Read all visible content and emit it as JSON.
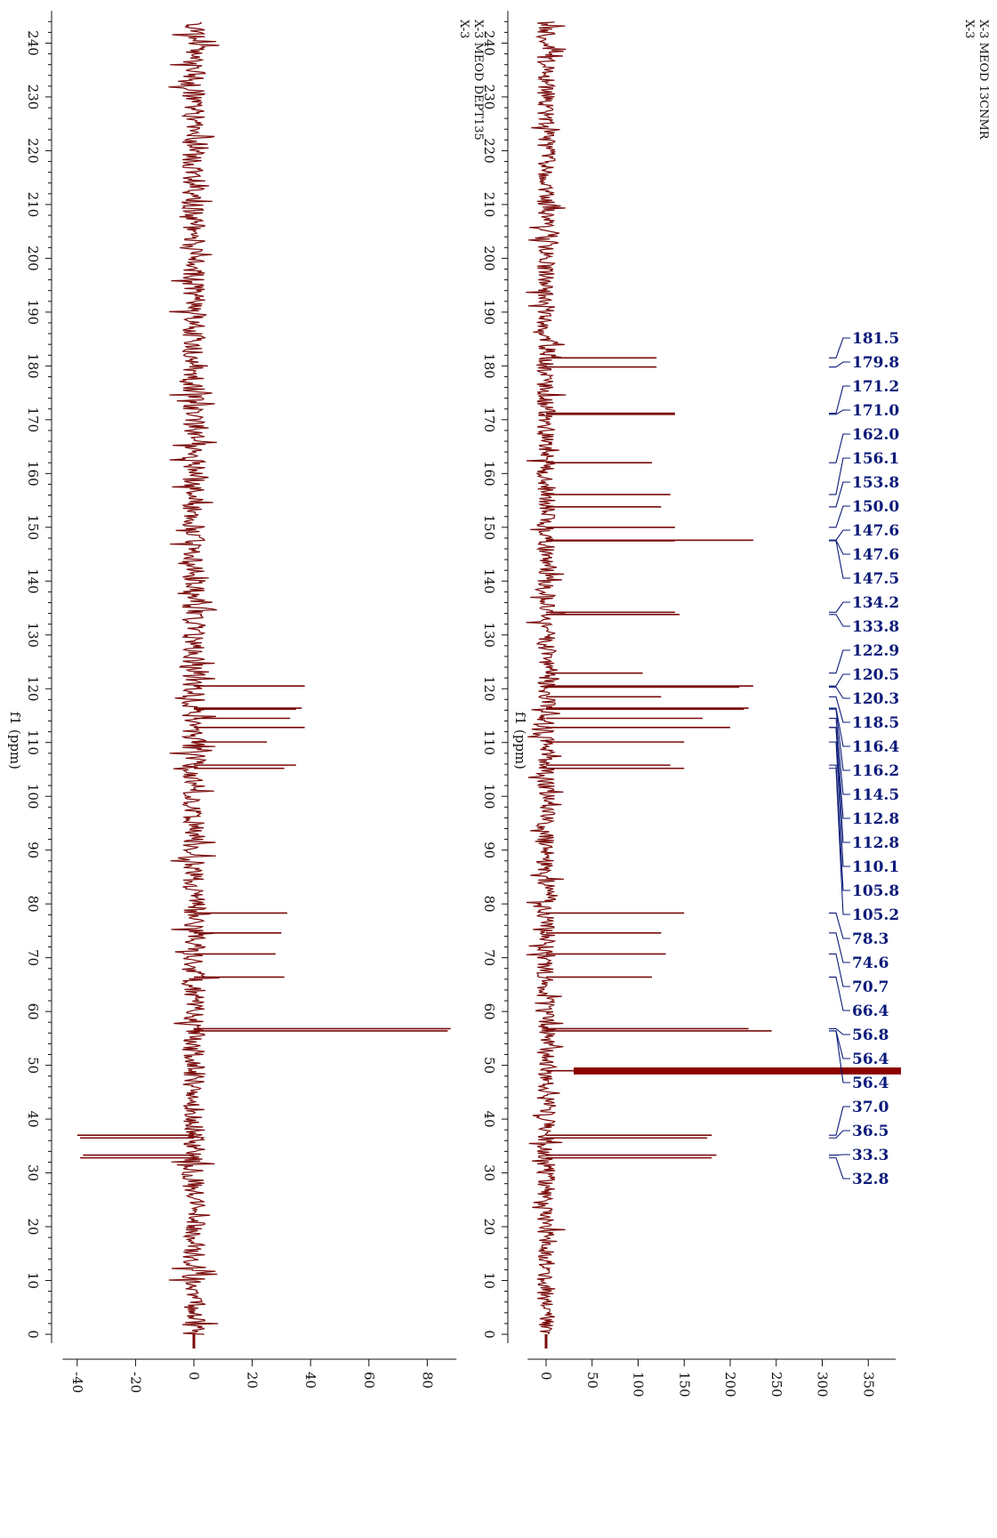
{
  "colors": {
    "spectrum": "#7a0a0a",
    "peak_label": "#0a1a78",
    "axis": "#111111",
    "baseline_fill": "#8b0000"
  },
  "chart_data": [
    {
      "type": "line",
      "orientation": "rotated-90",
      "title_lines": [
        "X-3",
        "X-3 MEOD 13CNMR"
      ],
      "x_label": "f1 (ppm)",
      "x_range": [
        0,
        245
      ],
      "x_ticks": [
        0,
        10,
        20,
        30,
        40,
        50,
        60,
        70,
        80,
        90,
        100,
        110,
        120,
        130,
        140,
        150,
        160,
        170,
        180,
        190,
        200,
        210,
        220,
        230,
        240
      ],
      "y_range": [
        -20,
        380
      ],
      "y_ticks": [
        0,
        50,
        100,
        150,
        200,
        250,
        300,
        350
      ],
      "peaks": [
        {
          "ppm": 181.5,
          "intensity": 120
        },
        {
          "ppm": 179.8,
          "intensity": 120
        },
        {
          "ppm": 171.2,
          "intensity": 140
        },
        {
          "ppm": 171.0,
          "intensity": 140
        },
        {
          "ppm": 162.0,
          "intensity": 115
        },
        {
          "ppm": 156.1,
          "intensity": 135
        },
        {
          "ppm": 153.8,
          "intensity": 125
        },
        {
          "ppm": 150.0,
          "intensity": 140
        },
        {
          "ppm": 147.6,
          "intensity": 225
        },
        {
          "ppm": 147.5,
          "intensity": 140
        },
        {
          "ppm": 134.2,
          "intensity": 140
        },
        {
          "ppm": 133.8,
          "intensity": 145
        },
        {
          "ppm": 122.9,
          "intensity": 105
        },
        {
          "ppm": 120.5,
          "intensity": 225
        },
        {
          "ppm": 120.3,
          "intensity": 210
        },
        {
          "ppm": 118.5,
          "intensity": 125
        },
        {
          "ppm": 116.4,
          "intensity": 220
        },
        {
          "ppm": 116.2,
          "intensity": 215
        },
        {
          "ppm": 114.5,
          "intensity": 170
        },
        {
          "ppm": 112.8,
          "intensity": 200
        },
        {
          "ppm": 110.1,
          "intensity": 150
        },
        {
          "ppm": 105.8,
          "intensity": 135
        },
        {
          "ppm": 105.2,
          "intensity": 150
        },
        {
          "ppm": 78.3,
          "intensity": 150
        },
        {
          "ppm": 74.6,
          "intensity": 125
        },
        {
          "ppm": 70.7,
          "intensity": 130
        },
        {
          "ppm": 66.4,
          "intensity": 115
        },
        {
          "ppm": 56.8,
          "intensity": 220
        },
        {
          "ppm": 56.4,
          "intensity": 245
        },
        {
          "ppm": 49.0,
          "intensity": 380
        },
        {
          "ppm": 37.0,
          "intensity": 180
        },
        {
          "ppm": 36.5,
          "intensity": 175
        },
        {
          "ppm": 33.3,
          "intensity": 185
        },
        {
          "ppm": 32.8,
          "intensity": 180
        }
      ],
      "peak_labels": [
        "181.5",
        "179.8",
        "171.2",
        "171.0",
        "162.0",
        "156.1",
        "153.8",
        "150.0",
        "147.6",
        "147.6",
        "147.5",
        "134.2",
        "133.8",
        "122.9",
        "120.5",
        "120.3",
        "118.5",
        "116.4",
        "116.2",
        "114.5",
        "112.8",
        "112.8",
        "110.1",
        "105.8",
        "105.2",
        "78.3",
        "74.6",
        "70.7",
        "66.4",
        "56.8",
        "56.4",
        "56.4",
        "37.0",
        "36.5",
        "33.3",
        "32.8"
      ],
      "noise_level": 10,
      "grid": false
    },
    {
      "type": "line",
      "orientation": "rotated-90",
      "title_lines": [
        "X-3",
        "X-3 MEOD DEPT135"
      ],
      "x_label": "f1 (ppm)",
      "x_range": [
        0,
        245
      ],
      "x_ticks": [
        0,
        10,
        20,
        30,
        40,
        50,
        60,
        70,
        80,
        90,
        100,
        110,
        120,
        130,
        140,
        150,
        160,
        170,
        180,
        190,
        200,
        210,
        220,
        230,
        240
      ],
      "y_range": [
        -45,
        90
      ],
      "y_ticks": [
        -40,
        -20,
        0,
        20,
        40,
        60,
        80
      ],
      "peaks": [
        {
          "ppm": 120.5,
          "intensity": 38
        },
        {
          "ppm": 116.4,
          "intensity": 37
        },
        {
          "ppm": 116.2,
          "intensity": 35
        },
        {
          "ppm": 114.5,
          "intensity": 33
        },
        {
          "ppm": 112.8,
          "intensity": 38
        },
        {
          "ppm": 110.1,
          "intensity": 25
        },
        {
          "ppm": 105.8,
          "intensity": 35
        },
        {
          "ppm": 105.2,
          "intensity": 31
        },
        {
          "ppm": 78.3,
          "intensity": 32
        },
        {
          "ppm": 74.6,
          "intensity": 30
        },
        {
          "ppm": 70.7,
          "intensity": 28
        },
        {
          "ppm": 66.4,
          "intensity": 31
        },
        {
          "ppm": 56.8,
          "intensity": 88
        },
        {
          "ppm": 56.4,
          "intensity": 87
        },
        {
          "ppm": 37.0,
          "intensity": -40
        },
        {
          "ppm": 36.5,
          "intensity": -39
        },
        {
          "ppm": 33.3,
          "intensity": -38
        },
        {
          "ppm": 32.8,
          "intensity": -39
        }
      ],
      "noise_level": 4,
      "grid": false
    }
  ]
}
